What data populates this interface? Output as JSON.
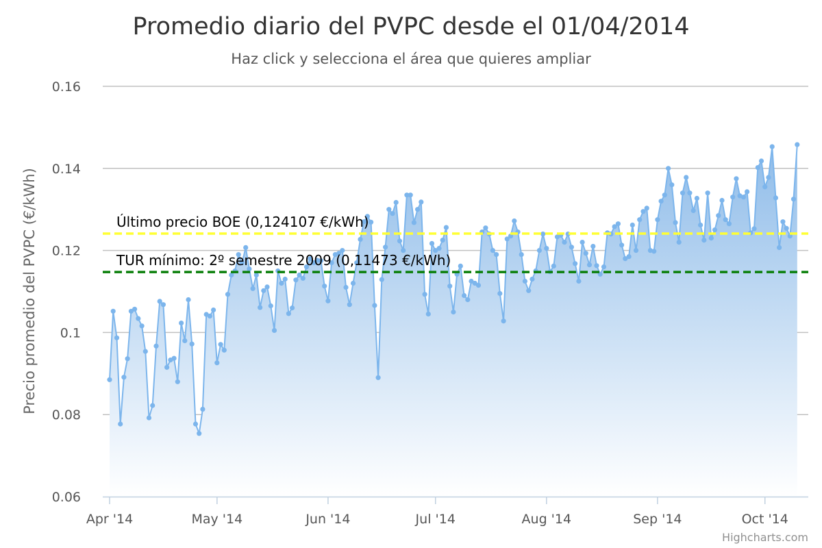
{
  "colors": {
    "series_line": "#7cb5ec",
    "area_top": "#8fbce9",
    "area_bottom": "#ffffff",
    "grid": "#c0c0c0",
    "plotline_boe": "#ffff33",
    "plotline_tur": "#0a7f0a",
    "axis": "#c0d0e0"
  },
  "credits": "Highcharts.com",
  "chart_data": {
    "type": "area",
    "title": "Promedio diario del PVPC desde el 01/04/2014",
    "subtitle": "Haz click y selecciona el área que quieres ampliar",
    "ylabel": "Precio promedio del PVPC (€/kWh)",
    "xlabel": "",
    "ylim": [
      0.06,
      0.16
    ],
    "yticks": [
      "0.06",
      "0.08",
      "0.1",
      "0.12",
      "0.14",
      "0.16"
    ],
    "xlim": [
      "2014-04-01",
      "2014-10-11"
    ],
    "xticks": [
      {
        "date": "2014-04-01",
        "label": "Apr '14"
      },
      {
        "date": "2014-05-01",
        "label": "May '14"
      },
      {
        "date": "2014-06-01",
        "label": "Jun '14"
      },
      {
        "date": "2014-07-01",
        "label": "Jul '14"
      },
      {
        "date": "2014-08-01",
        "label": "Aug '14"
      },
      {
        "date": "2014-09-01",
        "label": "Sep '14"
      },
      {
        "date": "2014-10-01",
        "label": "Oct '14"
      }
    ],
    "grid": true,
    "legend": "none",
    "plot_lines": [
      {
        "value": 0.124107,
        "label": "Último precio BOE (0,124107 €/kWh)",
        "style": "dashed",
        "color": "#ffff33"
      },
      {
        "value": 0.11473,
        "label": "TUR mínimo: 2º semestre 2009 (0,11473 €/kWh)",
        "style": "dashed",
        "color": "#0a7f0a"
      }
    ],
    "series": [
      {
        "start_date": "2014-04-01",
        "interval": "1 day",
        "values": [
          0.0885,
          0.1052,
          0.0987,
          0.0777,
          0.0891,
          0.0936,
          0.1052,
          0.1057,
          0.1034,
          0.1016,
          0.0954,
          0.0792,
          0.0822,
          0.0967,
          0.1076,
          0.1068,
          0.0915,
          0.0933,
          0.0937,
          0.088,
          0.1023,
          0.098,
          0.108,
          0.0972,
          0.0777,
          0.0754,
          0.0813,
          0.1044,
          0.104,
          0.1055,
          0.0926,
          0.0971,
          0.0957,
          0.1093,
          0.114,
          0.115,
          0.119,
          0.117,
          0.1207,
          0.1155,
          0.1107,
          0.114,
          0.1061,
          0.1102,
          0.1111,
          0.1065,
          0.1005,
          0.115,
          0.112,
          0.113,
          0.1046,
          0.106,
          0.1128,
          0.114,
          0.1132,
          0.116,
          0.118,
          0.117,
          0.1176,
          0.1175,
          0.1113,
          0.1077,
          0.117,
          0.119,
          0.1193,
          0.12,
          0.111,
          0.1068,
          0.112,
          0.117,
          0.1227,
          0.127,
          0.1283,
          0.1269,
          0.1066,
          0.089,
          0.1129,
          0.1208,
          0.13,
          0.129,
          0.1317,
          0.1223,
          0.12,
          0.1335,
          0.1335,
          0.1268,
          0.13,
          0.1318,
          0.1093,
          0.1045,
          0.1217,
          0.12,
          0.1205,
          0.1225,
          0.1256,
          0.1113,
          0.105,
          0.1142,
          0.1162,
          0.109,
          0.108,
          0.1125,
          0.112,
          0.1115,
          0.1245,
          0.1255,
          0.124,
          0.12,
          0.119,
          0.1095,
          0.1028,
          0.1228,
          0.1235,
          0.1272,
          0.1245,
          0.119,
          0.1125,
          0.1102,
          0.113,
          0.115,
          0.12,
          0.124,
          0.1205,
          0.1148,
          0.1162,
          0.1233,
          0.1237,
          0.122,
          0.124,
          0.1208,
          0.1168,
          0.1125,
          0.122,
          0.1193,
          0.1165,
          0.121,
          0.1163,
          0.1142,
          0.116,
          0.1243,
          0.124,
          0.1258,
          0.1265,
          0.1213,
          0.118,
          0.1185,
          0.1262,
          0.12,
          0.1275,
          0.1295,
          0.1303,
          0.12,
          0.1198,
          0.1275,
          0.132,
          0.1335,
          0.14,
          0.136,
          0.1268,
          0.122,
          0.134,
          0.1378,
          0.134,
          0.1297,
          0.1327,
          0.1262,
          0.1225,
          0.134,
          0.123,
          0.125,
          0.1285,
          0.1322,
          0.1275,
          0.1265,
          0.133,
          0.1375,
          0.1333,
          0.133,
          0.1343,
          0.1243,
          0.1253,
          0.1402,
          0.1418,
          0.1355,
          0.1378,
          0.1453,
          0.1328,
          0.1207,
          0.127,
          0.1254,
          0.1235,
          0.1325,
          0.1458
        ]
      }
    ]
  }
}
